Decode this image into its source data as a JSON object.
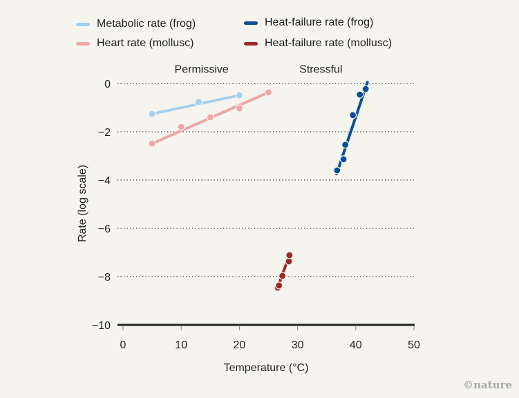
{
  "chart_data": {
    "type": "scatter",
    "title": "",
    "xlabel": "Temperature (°C)",
    "ylabel": "Rate (log scale)",
    "xlim": [
      0,
      50
    ],
    "ylim": [
      -10,
      0
    ],
    "xticks": [
      "0",
      "10",
      "20",
      "30",
      "40",
      "50"
    ],
    "xtick_values": [
      0,
      10,
      20,
      30,
      40,
      50
    ],
    "yticks": [
      "0",
      "−2",
      "−4",
      "−6",
      "−8",
      "−10"
    ],
    "ytick_values": [
      0,
      -2,
      -4,
      -6,
      -8,
      -10
    ],
    "grid": "horizontal dotted",
    "annotations": [
      {
        "text": "Permissive",
        "x": 13.5,
        "y": 0.45
      },
      {
        "text": "Stressful",
        "x": 34,
        "y": 0.45
      }
    ],
    "legend_position": "top-left",
    "series": [
      {
        "name": "Metabolic rate (frog)",
        "color": "#a7d0ee",
        "points": [
          [
            5,
            -1.26
          ],
          [
            13,
            -0.77
          ],
          [
            20,
            -0.49
          ]
        ],
        "fit": [
          [
            5,
            -1.26
          ],
          [
            20,
            -0.49
          ]
        ]
      },
      {
        "name": "Heart rate (mollusc)",
        "color": "#eca7a8",
        "points": [
          [
            5,
            -2.49
          ],
          [
            10,
            -1.8
          ],
          [
            15,
            -1.4
          ],
          [
            20,
            -1.03
          ],
          [
            25,
            -0.37
          ]
        ],
        "fit": [
          [
            5,
            -2.49
          ],
          [
            25,
            -0.37
          ]
        ]
      },
      {
        "name": "Heat-failure rate (frog)",
        "color": "#0b4e96",
        "points": [
          [
            36.8,
            -3.6
          ],
          [
            37.9,
            -3.14
          ],
          [
            38.2,
            -2.54
          ],
          [
            39.5,
            -1.31
          ],
          [
            40.7,
            -0.46
          ],
          [
            41.7,
            -0.23
          ]
        ],
        "fit": [
          [
            36.7,
            -3.75
          ],
          [
            42.0,
            0.05
          ]
        ]
      },
      {
        "name": "Heat-failure rate (mollusc)",
        "color": "#9b2a25",
        "points": [
          [
            26.6,
            -8.46
          ],
          [
            26.8,
            -8.37
          ],
          [
            27.4,
            -7.97
          ],
          [
            28.5,
            -7.37
          ],
          [
            28.6,
            -7.11
          ]
        ],
        "fit": [
          [
            26.5,
            -8.5
          ],
          [
            28.7,
            -7.05
          ]
        ]
      }
    ]
  },
  "credit": "©nature"
}
